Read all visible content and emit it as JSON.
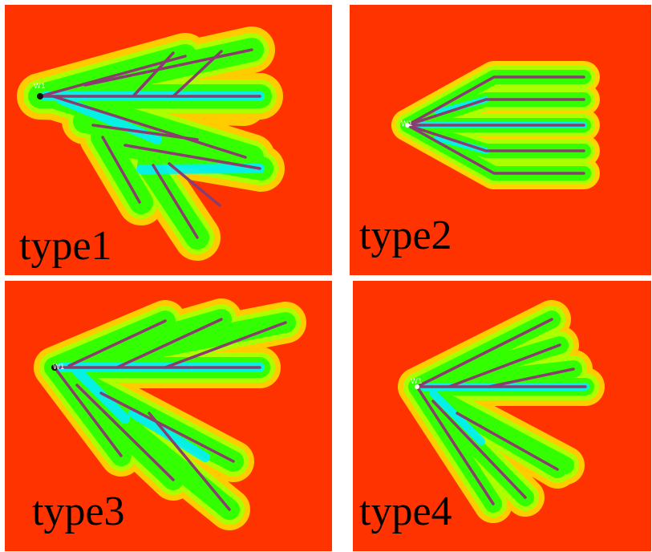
{
  "figure": {
    "colors": {
      "background": "#ff3300",
      "halo_outer": "#ffdd00",
      "halo_mid": "#aaff00",
      "halo_inner": "#33ff00",
      "core": "#00f0ff",
      "fracture": "#8a3d6e"
    },
    "panels": [
      {
        "label": "type1",
        "well": "W1",
        "branch_style": "two-sided fishbone with trunks"
      },
      {
        "label": "type2",
        "well": "W1",
        "branch_style": "parallel horizontal fans"
      },
      {
        "label": "type3",
        "well": "W1",
        "branch_style": "two-sided fishbone"
      },
      {
        "label": "type4",
        "well": "W1",
        "branch_style": "compact two-sided fishbone"
      }
    ]
  }
}
